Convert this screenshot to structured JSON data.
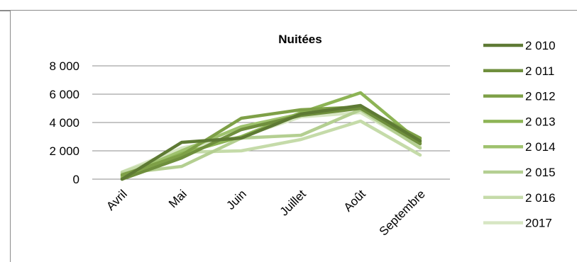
{
  "chart_data": {
    "type": "line",
    "title": "Nuitées",
    "categories": [
      "Avril",
      "Mai",
      "Juin",
      "Juillet",
      "Août",
      "Septembre"
    ],
    "yticks": [
      "0",
      "2 000",
      "4 000",
      "6 000",
      "8 000"
    ],
    "ylim": [
      0,
      8000
    ],
    "grid": true,
    "legend_position": "right",
    "series": [
      {
        "name": "2 010",
        "color": "#5e7a34",
        "values": [
          0,
          2600,
          2900,
          4600,
          5200,
          2700
        ]
      },
      {
        "name": "2 011",
        "color": "#6f8f3d",
        "values": [
          0,
          1500,
          3500,
          4500,
          5000,
          2500
        ]
      },
      {
        "name": "2 012",
        "color": "#7ea047",
        "values": [
          300,
          1700,
          4300,
          4900,
          5100,
          2900
        ]
      },
      {
        "name": "2 013",
        "color": "#8db455",
        "values": [
          100,
          1800,
          3000,
          4700,
          6100,
          2600
        ]
      },
      {
        "name": "2 014",
        "color": "#9fc26e",
        "values": [
          200,
          2000,
          3700,
          4600,
          5000,
          2800
        ]
      },
      {
        "name": "2 015",
        "color": "#b4cf91",
        "values": [
          400,
          900,
          2900,
          3100,
          4900,
          2200
        ]
      },
      {
        "name": "2 016",
        "color": "#c5dba9",
        "values": [
          500,
          1900,
          2000,
          2800,
          4100,
          1700
        ]
      },
      {
        "name": "2017",
        "color": "#d7e6c3",
        "values": [
          500,
          2200,
          3000,
          4400,
          4700,
          2300
        ]
      }
    ]
  }
}
